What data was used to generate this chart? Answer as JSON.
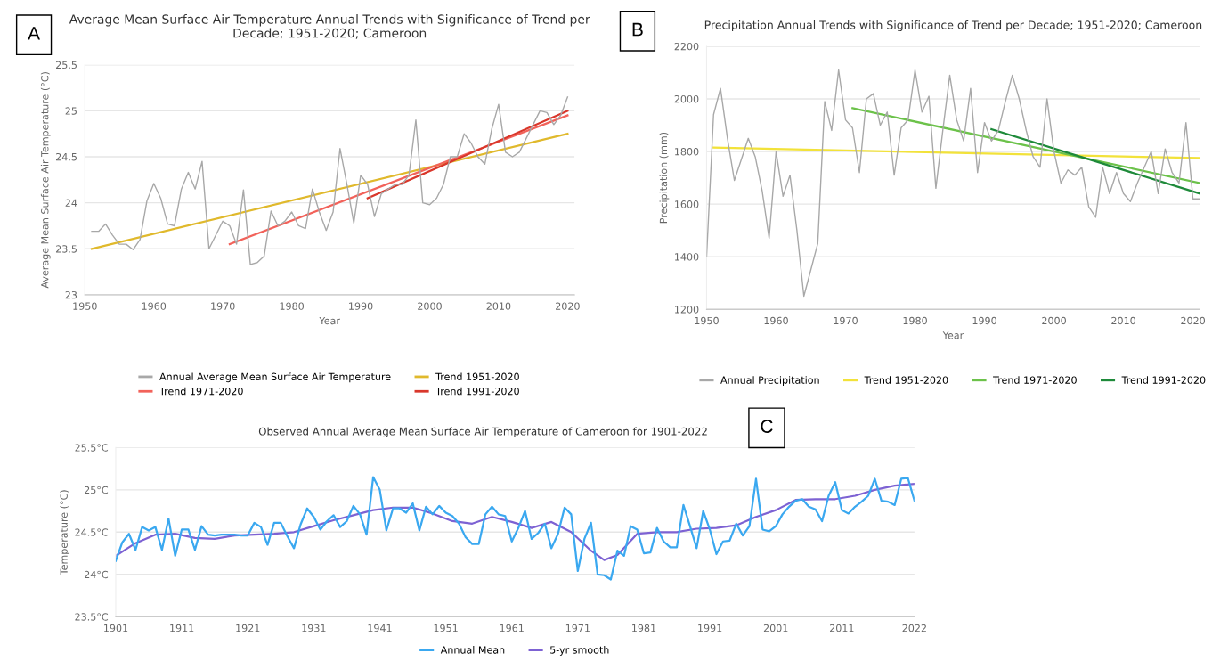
{
  "chart_data": [
    {
      "type": "line",
      "title": "Average Mean Surface Air Temperature Annual Trends with Significance of Trend per\nDecade; 1951-2020; Cameroon",
      "xlabel": "Year",
      "ylabel": "Average Mean Surface Air Temperature (°C)",
      "annotations": [
        "A"
      ],
      "xlim": [
        1950,
        2021
      ],
      "xticks": [
        1950,
        1960,
        1970,
        1980,
        1990,
        2000,
        2010,
        2020
      ],
      "ylim": [
        23,
        25.5
      ],
      "yticks": [
        23,
        23.5,
        24,
        24.5,
        25,
        25.5
      ],
      "grid": "y",
      "legend": "bottom",
      "series": [
        {
          "name": "Annual Average Mean Surface Air Temperature",
          "color": "#a8a8a8",
          "x": [
            1951,
            1952,
            1953,
            1954,
            1955,
            1956,
            1957,
            1958,
            1959,
            1960,
            1961,
            1962,
            1963,
            1964,
            1965,
            1966,
            1967,
            1968,
            1969,
            1970,
            1971,
            1972,
            1973,
            1974,
            1975,
            1976,
            1977,
            1978,
            1979,
            1980,
            1981,
            1982,
            1983,
            1984,
            1985,
            1986,
            1987,
            1988,
            1989,
            1990,
            1991,
            1992,
            1993,
            1994,
            1995,
            1996,
            1997,
            1998,
            1999,
            2000,
            2001,
            2002,
            2003,
            2004,
            2005,
            2006,
            2007,
            2008,
            2009,
            2010,
            2011,
            2012,
            2013,
            2014,
            2015,
            2016,
            2017,
            2018,
            2019,
            2020
          ],
          "values": [
            23.69,
            23.69,
            23.77,
            23.65,
            23.55,
            23.55,
            23.49,
            23.6,
            24.02,
            24.21,
            24.05,
            23.77,
            23.75,
            24.15,
            24.33,
            24.15,
            24.45,
            23.5,
            23.65,
            23.8,
            23.75,
            23.55,
            24.14,
            23.33,
            23.35,
            23.42,
            23.91,
            23.75,
            23.8,
            23.9,
            23.75,
            23.72,
            24.15,
            23.9,
            23.7,
            23.9,
            24.59,
            24.2,
            23.78,
            24.3,
            24.2,
            23.85,
            24.1,
            24.15,
            24.2,
            24.2,
            24.3,
            24.9,
            24.0,
            23.98,
            24.05,
            24.2,
            24.5,
            24.5,
            24.75,
            24.65,
            24.5,
            24.42,
            24.8,
            25.07,
            24.55,
            24.5,
            24.55,
            24.7,
            24.85,
            25.0,
            24.98,
            24.85,
            24.95,
            25.15
          ]
        },
        {
          "name": "Trend 1951-2020",
          "color": "#e0b92c",
          "x": [
            1951,
            2020
          ],
          "values": [
            23.5,
            24.75
          ]
        },
        {
          "name": "Trend 1971-2020",
          "color": "#f2625a",
          "x": [
            1971,
            2020
          ],
          "values": [
            23.55,
            24.95
          ]
        },
        {
          "name": "Trend 1991-2020",
          "color": "#d9372b",
          "x": [
            1991,
            2020
          ],
          "values": [
            24.05,
            25.0
          ]
        }
      ]
    },
    {
      "type": "line",
      "title": "Precipitation Annual Trends with Significance of Trend per Decade; 1951-2020; Cameroon",
      "xlabel": "Year",
      "ylabel": "Precipitation (mm)",
      "annotations": [
        "B"
      ],
      "xlim": [
        1950,
        2021
      ],
      "xticks": [
        1950,
        1960,
        1970,
        1980,
        1990,
        2000,
        2010,
        2020
      ],
      "ylim": [
        1200,
        2200
      ],
      "yticks": [
        1200,
        1400,
        1600,
        1800,
        2000,
        2200
      ],
      "grid": "y",
      "legend": "bottom",
      "series": [
        {
          "name": "Annual Precipitation",
          "color": "#a8a8a8",
          "x": [
            1950,
            1951,
            1952,
            1953,
            1954,
            1955,
            1956,
            1957,
            1958,
            1959,
            1960,
            1961,
            1962,
            1963,
            1964,
            1965,
            1966,
            1967,
            1968,
            1969,
            1970,
            1971,
            1972,
            1973,
            1974,
            1975,
            1976,
            1977,
            1978,
            1979,
            1980,
            1981,
            1982,
            1983,
            1984,
            1985,
            1986,
            1987,
            1988,
            1989,
            1990,
            1991,
            1992,
            1993,
            1994,
            1995,
            1996,
            1997,
            1998,
            1999,
            2000,
            2001,
            2002,
            2003,
            2004,
            2005,
            2006,
            2007,
            2008,
            2009,
            2010,
            2011,
            2012,
            2013,
            2014,
            2015,
            2016,
            2017,
            2018,
            2019,
            2020,
            2021
          ],
          "values": [
            1400,
            1940,
            2040,
            1850,
            1690,
            1770,
            1850,
            1780,
            1650,
            1470,
            1800,
            1630,
            1710,
            1500,
            1250,
            1350,
            1450,
            1990,
            1880,
            2110,
            1920,
            1890,
            1720,
            2000,
            2020,
            1900,
            1950,
            1710,
            1890,
            1920,
            2110,
            1950,
            2010,
            1660,
            1880,
            2090,
            1920,
            1840,
            2040,
            1720,
            1910,
            1840,
            1880,
            1990,
            2090,
            2000,
            1880,
            1780,
            1740,
            2000,
            1800,
            1680,
            1730,
            1710,
            1740,
            1590,
            1550,
            1740,
            1640,
            1720,
            1640,
            1610,
            1680,
            1740,
            1800,
            1640,
            1810,
            1720,
            1680,
            1910,
            1620,
            1620
          ]
        },
        {
          "name": "Trend 1951-2020",
          "color": "#f2e23a",
          "x": [
            1951,
            2021
          ],
          "values": [
            1815,
            1775
          ]
        },
        {
          "name": "Trend 1971-2020",
          "color": "#6cc24a",
          "x": [
            1971,
            2021
          ],
          "values": [
            1965,
            1680
          ]
        },
        {
          "name": "Trend 1991-2020",
          "color": "#1e8a3a",
          "x": [
            1991,
            2021
          ],
          "values": [
            1885,
            1640
          ]
        }
      ]
    },
    {
      "type": "line",
      "title": "Observed Annual Average Mean Surface Air Temperature of Cameroon for 1901-2022",
      "ylabel": "Temperature (°C)",
      "annotations": [
        "C"
      ],
      "xlim": [
        1901,
        2022
      ],
      "xticks": [
        1901,
        1911,
        1921,
        1931,
        1941,
        1951,
        1961,
        1971,
        1981,
        1991,
        2001,
        2011,
        2022
      ],
      "ylim": [
        23.5,
        25.5
      ],
      "yticks": [
        {
          "value": 23.5,
          "label": "23.5°C"
        },
        {
          "value": 24,
          "label": "24°C"
        },
        {
          "value": 24.5,
          "label": "24.5°C"
        },
        {
          "value": 25,
          "label": "25°C"
        },
        {
          "value": 25.5,
          "label": "25.5°C"
        }
      ],
      "grid": "y",
      "legend": "bottom",
      "series": [
        {
          "name": "Annual Mean",
          "color": "#3aa8f0",
          "x": [
            1901,
            1902,
            1903,
            1904,
            1905,
            1906,
            1907,
            1908,
            1909,
            1910,
            1911,
            1912,
            1913,
            1914,
            1915,
            1916,
            1917,
            1918,
            1919,
            1920,
            1921,
            1922,
            1923,
            1924,
            1925,
            1926,
            1927,
            1928,
            1929,
            1930,
            1931,
            1932,
            1933,
            1934,
            1935,
            1936,
            1937,
            1938,
            1939,
            1940,
            1941,
            1942,
            1943,
            1944,
            1945,
            1946,
            1947,
            1948,
            1949,
            1950,
            1951,
            1952,
            1953,
            1954,
            1955,
            1956,
            1957,
            1958,
            1959,
            1960,
            1961,
            1962,
            1963,
            1964,
            1965,
            1966,
            1967,
            1968,
            1969,
            1970,
            1971,
            1972,
            1973,
            1974,
            1975,
            1976,
            1977,
            1978,
            1979,
            1980,
            1981,
            1982,
            1983,
            1984,
            1985,
            1986,
            1987,
            1988,
            1989,
            1990,
            1991,
            1992,
            1993,
            1994,
            1995,
            1996,
            1997,
            1998,
            1999,
            2000,
            2001,
            2002,
            2003,
            2004,
            2005,
            2006,
            2007,
            2008,
            2009,
            2010,
            2011,
            2012,
            2013,
            2014,
            2015,
            2016,
            2017,
            2018,
            2019,
            2020,
            2021,
            2022
          ],
          "values": [
            24.16,
            24.38,
            24.48,
            24.29,
            24.56,
            24.52,
            24.56,
            24.29,
            24.66,
            24.22,
            24.53,
            24.53,
            24.29,
            24.57,
            24.47,
            24.46,
            24.47,
            24.47,
            24.47,
            24.46,
            24.46,
            24.61,
            24.56,
            24.35,
            24.61,
            24.61,
            24.45,
            24.31,
            24.59,
            24.78,
            24.68,
            24.53,
            24.63,
            24.7,
            24.56,
            24.63,
            24.81,
            24.71,
            24.47,
            25.15,
            25.0,
            24.52,
            24.78,
            24.78,
            24.73,
            24.84,
            24.52,
            24.8,
            24.71,
            24.81,
            24.73,
            24.69,
            24.6,
            24.44,
            24.36,
            24.36,
            24.71,
            24.8,
            24.71,
            24.69,
            24.39,
            24.55,
            24.75,
            24.42,
            24.49,
            24.6,
            24.31,
            24.48,
            24.79,
            24.71,
            24.04,
            24.42,
            24.61,
            24.0,
            23.99,
            23.94,
            24.28,
            24.22,
            24.57,
            24.53,
            24.25,
            24.26,
            24.55,
            24.39,
            24.32,
            24.32,
            24.82,
            24.57,
            24.31,
            24.75,
            24.53,
            24.24,
            24.39,
            24.4,
            24.6,
            24.46,
            24.57,
            25.13,
            24.53,
            24.51,
            24.57,
            24.71,
            24.8,
            24.87,
            24.89,
            24.8,
            24.77,
            24.63,
            24.93,
            25.09,
            24.76,
            24.72,
            24.8,
            24.86,
            24.93,
            25.13,
            24.87,
            24.86,
            24.82,
            25.13,
            25.14,
            24.87
          ]
        },
        {
          "name": "5-yr smooth",
          "color": "#7d62d3",
          "x": [
            1901,
            1904,
            1907,
            1910,
            1913,
            1916,
            1919,
            1922,
            1925,
            1928,
            1931,
            1934,
            1937,
            1940,
            1943,
            1946,
            1949,
            1952,
            1955,
            1958,
            1961,
            1964,
            1967,
            1970,
            1973,
            1975,
            1977,
            1980,
            1983,
            1986,
            1989,
            1992,
            1995,
            1998,
            2001,
            2004,
            2007,
            2010,
            2013,
            2016,
            2019,
            2022
          ],
          "values": [
            24.22,
            24.37,
            24.47,
            24.48,
            24.43,
            24.42,
            24.46,
            24.47,
            24.48,
            24.5,
            24.57,
            24.64,
            24.7,
            24.76,
            24.79,
            24.79,
            24.72,
            24.63,
            24.6,
            24.68,
            24.62,
            24.55,
            24.62,
            24.5,
            24.28,
            24.17,
            24.23,
            24.48,
            24.5,
            24.5,
            24.54,
            24.55,
            24.58,
            24.68,
            24.76,
            24.88,
            24.89,
            24.89,
            24.93,
            25.0,
            25.05,
            25.07
          ]
        }
      ]
    }
  ]
}
